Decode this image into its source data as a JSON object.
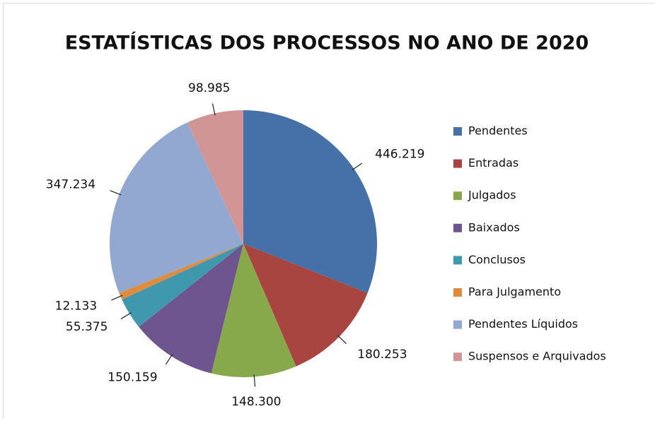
{
  "chart_data": {
    "type": "pie",
    "title": "ESTATÍSTICAS DOS PROCESSOS NO ANO DE 2020",
    "categories": [
      "Pendentes",
      "Entradas",
      "Julgados",
      "Baixados",
      "Conclusos",
      "Para Julgamento",
      "Pendentes Líquidos",
      "Suspensos e Arquivados"
    ],
    "values": [
      446219,
      180253,
      148300,
      150159,
      55375,
      12133,
      347234,
      98985
    ],
    "value_labels": [
      "446.219",
      "180.253",
      "148.300",
      "150.159",
      "55.375",
      "12.133",
      "347.234",
      "98.985"
    ],
    "colors": [
      "#4570a8",
      "#a94541",
      "#88a94b",
      "#6f558f",
      "#3f98ae",
      "#e08a3b",
      "#93a8d1",
      "#d19595"
    ],
    "legend": "right"
  }
}
